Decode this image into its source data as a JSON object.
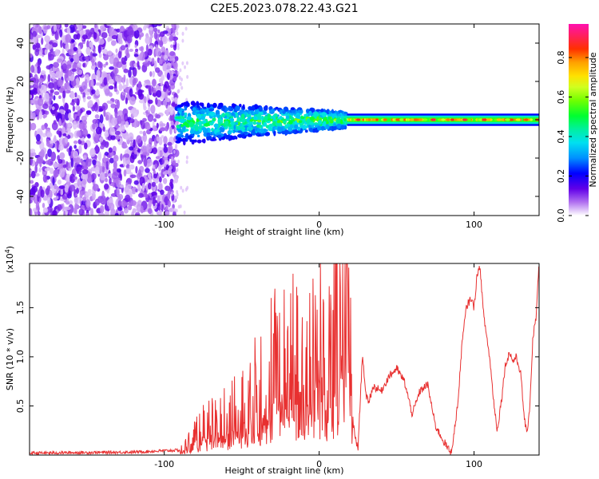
{
  "figure_title": "C2E5.2023.078.22.43.G21",
  "chart_data": [
    {
      "type": "heatmap",
      "xlabel": "Height of straight line (km)",
      "ylabel": "Frequency (Hz)",
      "xlim": [
        -187,
        142
      ],
      "ylim": [
        -50,
        50
      ],
      "x_ticks": [
        -100,
        0,
        100
      ],
      "y_ticks": [
        -40,
        -20,
        0,
        20,
        40
      ],
      "colorbar": {
        "label": "Normalized spectral amplitude",
        "range": [
          0,
          0.97
        ],
        "ticks": [
          "0.0",
          "0.2",
          "0.4",
          "0.6",
          "0.8"
        ],
        "tick_values": [
          0.0,
          0.2,
          0.4,
          0.6,
          0.8
        ],
        "colormap": "gist_ncar-like (white → purple → blue → cyan → green → yellow → orange → red → magenta)"
      },
      "regions": [
        {
          "x_range": [
            -187,
            -92
          ],
          "freq_range": [
            -50,
            50
          ],
          "amplitude": "low (0.0-0.15)",
          "pattern": "scattered broadband noise"
        },
        {
          "x_range": [
            -92,
            -20
          ],
          "freq_range": [
            -12,
            10
          ],
          "amplitude": "0.15-0.45",
          "pattern": "narrowing band"
        },
        {
          "x_range": [
            -20,
            18
          ],
          "freq_range": [
            -6,
            5
          ],
          "amplitude": "0.2-0.6",
          "pattern": "narrow band"
        },
        {
          "x_range": [
            18,
            142
          ],
          "freq_range": [
            -3,
            3
          ],
          "amplitude": "0.5-0.95",
          "pattern": "strong line at 0 Hz"
        }
      ],
      "grid": false
    },
    {
      "type": "line",
      "xlabel": "Height of straight line (km)",
      "ylabel": "SNR (10 * v/v)",
      "y_multiplier": "(x10^4)",
      "xlim": [
        -187,
        142
      ],
      "ylim": [
        0,
        1.95
      ],
      "x_ticks": [
        -100,
        0,
        100
      ],
      "y_ticks": [
        "0.5",
        "1.0",
        "1.5"
      ],
      "y_tick_values": [
        0.5,
        1.0,
        1.5
      ],
      "series": [
        {
          "color": "#e83030",
          "x": [
            -187,
            -120,
            -90,
            -85,
            -75,
            -70,
            -60,
            -50,
            -40,
            -30,
            -25,
            -20,
            -15,
            -10,
            -5,
            0,
            5,
            10,
            15,
            18,
            20,
            22,
            25,
            28,
            30,
            32,
            35,
            40,
            45,
            50,
            55,
            60,
            62,
            65,
            70,
            75,
            80,
            85,
            87,
            90,
            92,
            95,
            98,
            100,
            102,
            104,
            106,
            110,
            113,
            115,
            118,
            120,
            123,
            125,
            127,
            130,
            132,
            134,
            136,
            138,
            140,
            142
          ],
          "y": [
            0.02,
            0.03,
            0.05,
            0.12,
            0.28,
            0.35,
            0.42,
            0.55,
            0.7,
            0.9,
            1.05,
            1.15,
            0.95,
            1.25,
            1.1,
            1.5,
            1.1,
            1.6,
            1.6,
            1.8,
            1.0,
            0.3,
            0.05,
            1.05,
            0.6,
            0.55,
            0.7,
            0.65,
            0.8,
            0.88,
            0.75,
            0.42,
            0.5,
            0.65,
            0.72,
            0.3,
            0.15,
            0.02,
            0.2,
            0.6,
            1.1,
            1.5,
            1.6,
            1.5,
            1.85,
            1.9,
            1.45,
            1.0,
            0.5,
            0.25,
            0.6,
            0.9,
            1.05,
            0.95,
            1.0,
            0.85,
            0.45,
            0.2,
            0.5,
            1.2,
            1.4,
            1.95
          ]
        }
      ],
      "grid": false
    }
  ]
}
